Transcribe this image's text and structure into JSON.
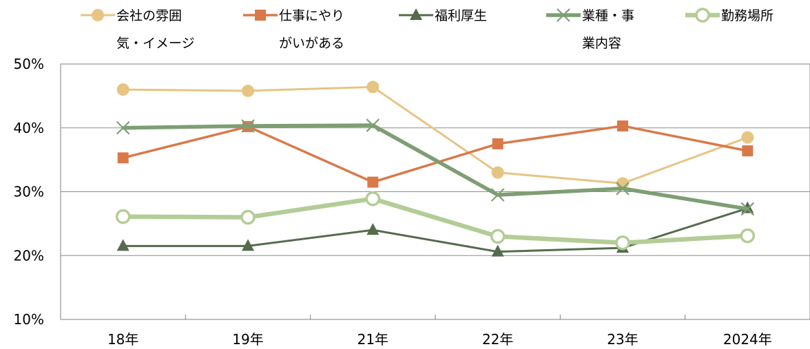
{
  "chart_data": {
    "type": "line",
    "title": "",
    "xlabel": "",
    "ylabel": "",
    "categories": [
      "18年",
      "19年",
      "21年",
      "22年",
      "23年",
      "2024年"
    ],
    "ylim": [
      10,
      50
    ],
    "yticks": [
      10,
      20,
      30,
      40,
      50
    ],
    "ytick_labels": [
      "10%",
      "20%",
      "30%",
      "40%",
      "50%"
    ],
    "grid": true,
    "legend_position": "top",
    "series": [
      {
        "name_lines": [
          "会社の雰囲",
          "気・イメージ"
        ],
        "values": [
          46.0,
          45.8,
          46.4,
          33.0,
          31.3,
          38.5
        ],
        "color": "#E6C483",
        "marker": "circle"
      },
      {
        "name_lines": [
          "仕事にやり",
          "がいがある"
        ],
        "values": [
          35.3,
          40.2,
          31.5,
          37.5,
          40.3,
          36.4
        ],
        "color": "#D9794A",
        "marker": "square"
      },
      {
        "name_lines": [
          "福利厚生"
        ],
        "values": [
          21.5,
          21.5,
          24.0,
          20.6,
          21.2,
          27.4
        ],
        "color": "#546B4D",
        "marker": "triangle"
      },
      {
        "name_lines": [
          "業種・事",
          "業内容"
        ],
        "values": [
          40.0,
          40.3,
          40.4,
          29.5,
          30.5,
          27.3
        ],
        "color": "#7E9E73",
        "marker": "x"
      },
      {
        "name_lines": [
          "勤務場所"
        ],
        "values": [
          26.1,
          26.0,
          28.9,
          23.0,
          22.0,
          23.1
        ],
        "color": "#B4CC96",
        "marker": "hollow-circle"
      }
    ]
  }
}
